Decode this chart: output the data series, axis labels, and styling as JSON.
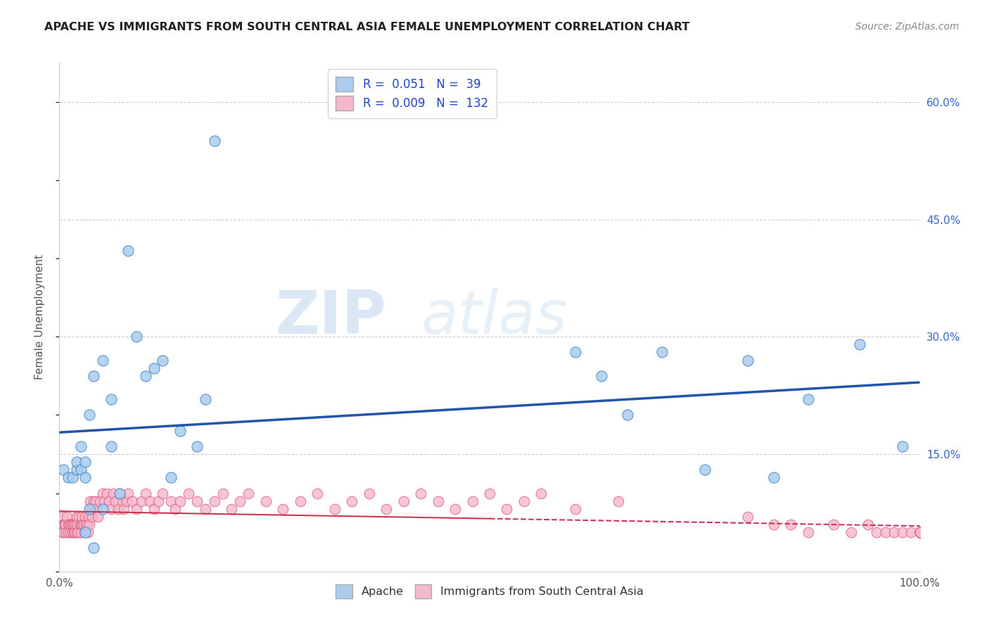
{
  "title": "APACHE VS IMMIGRANTS FROM SOUTH CENTRAL ASIA FEMALE UNEMPLOYMENT CORRELATION CHART",
  "source": "Source: ZipAtlas.com",
  "ylabel": "Female Unemployment",
  "xlim": [
    0,
    1.0
  ],
  "ylim": [
    0,
    0.65
  ],
  "xticklabels_edges": [
    "0.0%",
    "100.0%"
  ],
  "yticks_right": [
    0.15,
    0.3,
    0.45,
    0.6
  ],
  "yticklabels_right": [
    "15.0%",
    "30.0%",
    "45.0%",
    "60.0%"
  ],
  "grid_color": "#cccccc",
  "bg_color": "#ffffff",
  "series1_label": "Apache",
  "series1_color": "#aaccee",
  "series1_edge_color": "#4488cc",
  "series1_R": "0.051",
  "series1_N": "39",
  "series2_label": "Immigrants from South Central Asia",
  "series2_color": "#f5b8cc",
  "series2_edge_color": "#e06080",
  "series2_R": "0.009",
  "series2_N": "132",
  "trend1_color": "#2255aa",
  "trend2_color": "#cc3355",
  "legend_R_color": "#2244cc",
  "watermark_zip": "ZIP",
  "watermark_atlas": "atlas",
  "apache_x": [
    0.005,
    0.01,
    0.015,
    0.02,
    0.02,
    0.025,
    0.025,
    0.03,
    0.03,
    0.03,
    0.035,
    0.035,
    0.04,
    0.04,
    0.05,
    0.05,
    0.06,
    0.06,
    0.07,
    0.08,
    0.09,
    0.1,
    0.11,
    0.12,
    0.13,
    0.14,
    0.16,
    0.17,
    0.18,
    0.6,
    0.63,
    0.66,
    0.7,
    0.75,
    0.8,
    0.83,
    0.87,
    0.93,
    0.98
  ],
  "apache_y": [
    0.13,
    0.12,
    0.12,
    0.13,
    0.14,
    0.13,
    0.16,
    0.05,
    0.12,
    0.14,
    0.08,
    0.2,
    0.03,
    0.25,
    0.08,
    0.27,
    0.16,
    0.22,
    0.1,
    0.41,
    0.3,
    0.25,
    0.26,
    0.27,
    0.12,
    0.18,
    0.16,
    0.22,
    0.55,
    0.28,
    0.25,
    0.2,
    0.28,
    0.13,
    0.27,
    0.12,
    0.22,
    0.29,
    0.16
  ],
  "immig_x": [
    0.002,
    0.003,
    0.004,
    0.005,
    0.005,
    0.006,
    0.007,
    0.008,
    0.009,
    0.01,
    0.01,
    0.012,
    0.012,
    0.013,
    0.014,
    0.015,
    0.015,
    0.016,
    0.017,
    0.018,
    0.018,
    0.019,
    0.02,
    0.02,
    0.021,
    0.022,
    0.023,
    0.024,
    0.025,
    0.025,
    0.026,
    0.027,
    0.028,
    0.029,
    0.03,
    0.031,
    0.032,
    0.033,
    0.034,
    0.035,
    0.036,
    0.037,
    0.038,
    0.04,
    0.04,
    0.042,
    0.043,
    0.045,
    0.047,
    0.05,
    0.052,
    0.055,
    0.058,
    0.06,
    0.063,
    0.065,
    0.068,
    0.07,
    0.073,
    0.075,
    0.078,
    0.08,
    0.085,
    0.09,
    0.095,
    0.1,
    0.105,
    0.11,
    0.115,
    0.12,
    0.13,
    0.135,
    0.14,
    0.15,
    0.16,
    0.17,
    0.18,
    0.19,
    0.2,
    0.21,
    0.22,
    0.24,
    0.26,
    0.28,
    0.3,
    0.32,
    0.34,
    0.36,
    0.38,
    0.4,
    0.42,
    0.44,
    0.46,
    0.48,
    0.5,
    0.52,
    0.54,
    0.56,
    0.6,
    0.65,
    0.8,
    0.83,
    0.85,
    0.87,
    0.9,
    0.92,
    0.94,
    0.95,
    0.96,
    0.97,
    0.98,
    0.99,
    1.0,
    1.0,
    1.0,
    1.0,
    1.0,
    1.0,
    1.0,
    1.0,
    1.0,
    1.0,
    1.0,
    1.0,
    1.0,
    1.0,
    1.0,
    1.0,
    1.0,
    1.0,
    1.0,
    1.0
  ],
  "immig_y": [
    0.06,
    0.05,
    0.07,
    0.06,
    0.05,
    0.06,
    0.06,
    0.05,
    0.07,
    0.06,
    0.05,
    0.06,
    0.06,
    0.05,
    0.06,
    0.06,
    0.05,
    0.06,
    0.05,
    0.06,
    0.05,
    0.06,
    0.05,
    0.07,
    0.06,
    0.05,
    0.07,
    0.06,
    0.06,
    0.05,
    0.07,
    0.06,
    0.06,
    0.05,
    0.07,
    0.06,
    0.06,
    0.05,
    0.07,
    0.06,
    0.09,
    0.08,
    0.07,
    0.09,
    0.08,
    0.09,
    0.08,
    0.07,
    0.09,
    0.1,
    0.09,
    0.1,
    0.09,
    0.08,
    0.1,
    0.09,
    0.08,
    0.1,
    0.09,
    0.08,
    0.09,
    0.1,
    0.09,
    0.08,
    0.09,
    0.1,
    0.09,
    0.08,
    0.09,
    0.1,
    0.09,
    0.08,
    0.09,
    0.1,
    0.09,
    0.08,
    0.09,
    0.1,
    0.08,
    0.09,
    0.1,
    0.09,
    0.08,
    0.09,
    0.1,
    0.08,
    0.09,
    0.1,
    0.08,
    0.09,
    0.1,
    0.09,
    0.08,
    0.09,
    0.1,
    0.08,
    0.09,
    0.1,
    0.08,
    0.09,
    0.07,
    0.06,
    0.06,
    0.05,
    0.06,
    0.05,
    0.06,
    0.05,
    0.05,
    0.05,
    0.05,
    0.05,
    0.05,
    0.05,
    0.05,
    0.05,
    0.05,
    0.05,
    0.05,
    0.05,
    0.05,
    0.05,
    0.05,
    0.05,
    0.05,
    0.05,
    0.05,
    0.05,
    0.05,
    0.05,
    0.05,
    0.05
  ]
}
